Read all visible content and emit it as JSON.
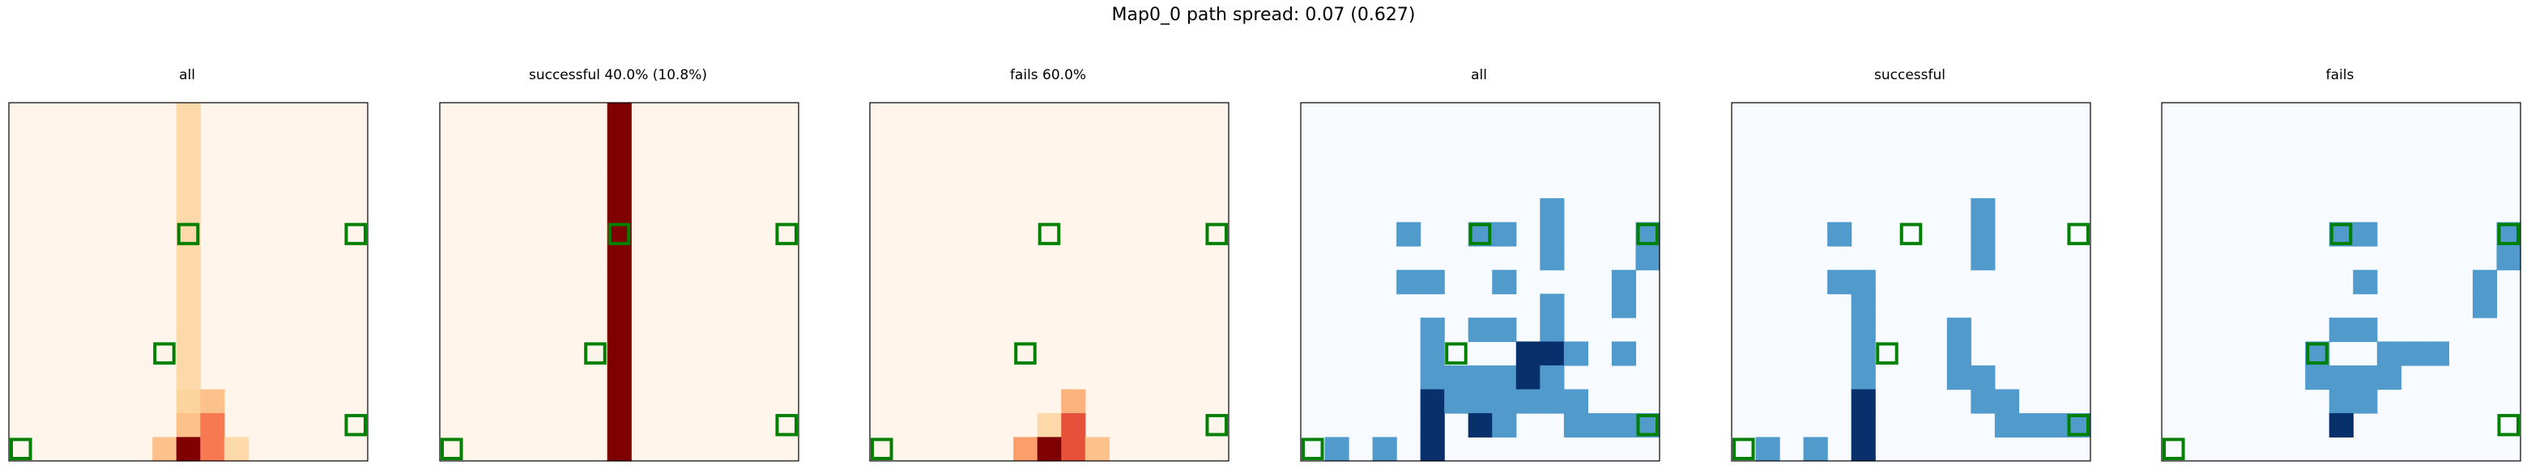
{
  "suptitle": "Map0_0 path spread: 0.07 (0.627)",
  "chart_data": [
    {
      "type": "heatmap",
      "title": "all",
      "colormap": "Oranges",
      "grid": false,
      "rows": 15,
      "cols": 15,
      "cells": [
        {
          "r": 0,
          "c": 7,
          "v": 1
        },
        {
          "r": 1,
          "c": 7,
          "v": 1
        },
        {
          "r": 2,
          "c": 7,
          "v": 1
        },
        {
          "r": 3,
          "c": 7,
          "v": 1
        },
        {
          "r": 4,
          "c": 7,
          "v": 1
        },
        {
          "r": 5,
          "c": 7,
          "v": 1
        },
        {
          "r": 6,
          "c": 7,
          "v": 1
        },
        {
          "r": 7,
          "c": 7,
          "v": 1
        },
        {
          "r": 8,
          "c": 7,
          "v": 1
        },
        {
          "r": 9,
          "c": 7,
          "v": 1
        },
        {
          "r": 10,
          "c": 7,
          "v": 1
        },
        {
          "r": 11,
          "c": 7,
          "v": 1
        },
        {
          "r": 12,
          "c": 7,
          "v": 1.2
        },
        {
          "r": 12,
          "c": 8,
          "v": 2
        },
        {
          "r": 13,
          "c": 7,
          "v": 2
        },
        {
          "r": 13,
          "c": 8,
          "v": 4
        },
        {
          "r": 14,
          "c": 6,
          "v": 2
        },
        {
          "r": 14,
          "c": 7,
          "v": 8
        },
        {
          "r": 14,
          "c": 8,
          "v": 4
        },
        {
          "r": 14,
          "c": 9,
          "v": 1
        }
      ],
      "markers": [
        {
          "r": 5,
          "c": 7
        },
        {
          "r": 5,
          "c": 14
        },
        {
          "r": 10,
          "c": 6
        },
        {
          "r": 13,
          "c": 14
        },
        {
          "r": 14,
          "c": 0
        }
      ]
    },
    {
      "type": "heatmap",
      "title": "successful 40.0% (10.8%)",
      "colormap": "Oranges",
      "grid": false,
      "rows": 15,
      "cols": 15,
      "cells": [
        {
          "r": 0,
          "c": 7,
          "v": 1
        },
        {
          "r": 1,
          "c": 7,
          "v": 1
        },
        {
          "r": 2,
          "c": 7,
          "v": 1
        },
        {
          "r": 3,
          "c": 7,
          "v": 1
        },
        {
          "r": 4,
          "c": 7,
          "v": 1
        },
        {
          "r": 5,
          "c": 7,
          "v": 1
        },
        {
          "r": 6,
          "c": 7,
          "v": 1
        },
        {
          "r": 7,
          "c": 7,
          "v": 1
        },
        {
          "r": 8,
          "c": 7,
          "v": 1
        },
        {
          "r": 9,
          "c": 7,
          "v": 1
        },
        {
          "r": 10,
          "c": 7,
          "v": 1
        },
        {
          "r": 11,
          "c": 7,
          "v": 1
        },
        {
          "r": 12,
          "c": 7,
          "v": 1
        },
        {
          "r": 13,
          "c": 7,
          "v": 1
        },
        {
          "r": 14,
          "c": 7,
          "v": 1
        }
      ],
      "markers": [
        {
          "r": 5,
          "c": 7
        },
        {
          "r": 5,
          "c": 14
        },
        {
          "r": 10,
          "c": 6
        },
        {
          "r": 13,
          "c": 14
        },
        {
          "r": 14,
          "c": 0
        }
      ]
    },
    {
      "type": "heatmap",
      "title": "fails 60.0%",
      "colormap": "Oranges",
      "grid": false,
      "rows": 15,
      "cols": 15,
      "cells": [
        {
          "r": 12,
          "c": 8,
          "v": 2.5
        },
        {
          "r": 13,
          "c": 7,
          "v": 1
        },
        {
          "r": 13,
          "c": 8,
          "v": 5
        },
        {
          "r": 14,
          "c": 6,
          "v": 3
        },
        {
          "r": 14,
          "c": 7,
          "v": 8
        },
        {
          "r": 14,
          "c": 8,
          "v": 5
        },
        {
          "r": 14,
          "c": 9,
          "v": 2
        }
      ],
      "markers": [
        {
          "r": 5,
          "c": 7
        },
        {
          "r": 5,
          "c": 14
        },
        {
          "r": 10,
          "c": 6
        },
        {
          "r": 13,
          "c": 14
        },
        {
          "r": 14,
          "c": 0
        }
      ]
    },
    {
      "type": "heatmap",
      "title": "all",
      "colormap": "Blues",
      "grid": false,
      "rows": 15,
      "cols": 15,
      "cells": [
        {
          "r": 4,
          "c": 10,
          "v": 1
        },
        {
          "r": 5,
          "c": 4,
          "v": 1
        },
        {
          "r": 5,
          "c": 7,
          "v": 1
        },
        {
          "r": 5,
          "c": 8,
          "v": 1
        },
        {
          "r": 5,
          "c": 10,
          "v": 1
        },
        {
          "r": 5,
          "c": 14,
          "v": 1
        },
        {
          "r": 6,
          "c": 10,
          "v": 1
        },
        {
          "r": 6,
          "c": 14,
          "v": 1
        },
        {
          "r": 7,
          "c": 4,
          "v": 1
        },
        {
          "r": 7,
          "c": 5,
          "v": 1
        },
        {
          "r": 7,
          "c": 8,
          "v": 1
        },
        {
          "r": 7,
          "c": 13,
          "v": 1
        },
        {
          "r": 8,
          "c": 10,
          "v": 1
        },
        {
          "r": 8,
          "c": 13,
          "v": 1
        },
        {
          "r": 9,
          "c": 5,
          "v": 1
        },
        {
          "r": 9,
          "c": 7,
          "v": 1
        },
        {
          "r": 9,
          "c": 8,
          "v": 1
        },
        {
          "r": 9,
          "c": 10,
          "v": 1
        },
        {
          "r": 10,
          "c": 5,
          "v": 1
        },
        {
          "r": 10,
          "c": 9,
          "v": 3
        },
        {
          "r": 10,
          "c": 10,
          "v": 3
        },
        {
          "r": 10,
          "c": 11,
          "v": 1
        },
        {
          "r": 10,
          "c": 13,
          "v": 1
        },
        {
          "r": 11,
          "c": 5,
          "v": 1
        },
        {
          "r": 11,
          "c": 6,
          "v": 1
        },
        {
          "r": 11,
          "c": 7,
          "v": 1
        },
        {
          "r": 11,
          "c": 8,
          "v": 1
        },
        {
          "r": 11,
          "c": 9,
          "v": 3
        },
        {
          "r": 11,
          "c": 10,
          "v": 1
        },
        {
          "r": 12,
          "c": 5,
          "v": 3
        },
        {
          "r": 12,
          "c": 6,
          "v": 1
        },
        {
          "r": 12,
          "c": 7,
          "v": 1
        },
        {
          "r": 12,
          "c": 8,
          "v": 1
        },
        {
          "r": 12,
          "c": 9,
          "v": 1
        },
        {
          "r": 12,
          "c": 10,
          "v": 1
        },
        {
          "r": 12,
          "c": 11,
          "v": 1
        },
        {
          "r": 13,
          "c": 5,
          "v": 3
        },
        {
          "r": 13,
          "c": 7,
          "v": 3
        },
        {
          "r": 13,
          "c": 8,
          "v": 1
        },
        {
          "r": 13,
          "c": 11,
          "v": 1
        },
        {
          "r": 13,
          "c": 12,
          "v": 1
        },
        {
          "r": 13,
          "c": 13,
          "v": 1
        },
        {
          "r": 13,
          "c": 14,
          "v": 1
        },
        {
          "r": 14,
          "c": 1,
          "v": 1
        },
        {
          "r": 14,
          "c": 3,
          "v": 1
        },
        {
          "r": 14,
          "c": 5,
          "v": 3
        }
      ],
      "markers": [
        {
          "r": 5,
          "c": 7
        },
        {
          "r": 5,
          "c": 14
        },
        {
          "r": 10,
          "c": 6
        },
        {
          "r": 13,
          "c": 14
        },
        {
          "r": 14,
          "c": 0
        }
      ]
    },
    {
      "type": "heatmap",
      "title": "successful",
      "colormap": "Blues",
      "grid": false,
      "rows": 15,
      "cols": 15,
      "cells": [
        {
          "r": 4,
          "c": 10,
          "v": 1
        },
        {
          "r": 5,
          "c": 4,
          "v": 1
        },
        {
          "r": 5,
          "c": 10,
          "v": 1
        },
        {
          "r": 6,
          "c": 10,
          "v": 1
        },
        {
          "r": 7,
          "c": 4,
          "v": 1
        },
        {
          "r": 7,
          "c": 5,
          "v": 1
        },
        {
          "r": 8,
          "c": 5,
          "v": 1
        },
        {
          "r": 9,
          "c": 5,
          "v": 1
        },
        {
          "r": 9,
          "c": 9,
          "v": 1
        },
        {
          "r": 10,
          "c": 5,
          "v": 1
        },
        {
          "r": 10,
          "c": 9,
          "v": 1
        },
        {
          "r": 11,
          "c": 5,
          "v": 1
        },
        {
          "r": 11,
          "c": 9,
          "v": 1
        },
        {
          "r": 11,
          "c": 10,
          "v": 1
        },
        {
          "r": 12,
          "c": 5,
          "v": 3
        },
        {
          "r": 12,
          "c": 10,
          "v": 1
        },
        {
          "r": 12,
          "c": 11,
          "v": 1
        },
        {
          "r": 13,
          "c": 5,
          "v": 3
        },
        {
          "r": 13,
          "c": 11,
          "v": 1
        },
        {
          "r": 13,
          "c": 12,
          "v": 1
        },
        {
          "r": 13,
          "c": 13,
          "v": 1
        },
        {
          "r": 13,
          "c": 14,
          "v": 1
        },
        {
          "r": 14,
          "c": 1,
          "v": 1
        },
        {
          "r": 14,
          "c": 3,
          "v": 1
        },
        {
          "r": 14,
          "c": 5,
          "v": 3
        }
      ],
      "markers": [
        {
          "r": 5,
          "c": 7
        },
        {
          "r": 5,
          "c": 14
        },
        {
          "r": 10,
          "c": 6
        },
        {
          "r": 13,
          "c": 14
        },
        {
          "r": 14,
          "c": 0
        }
      ]
    },
    {
      "type": "heatmap",
      "title": "fails",
      "colormap": "Blues",
      "grid": false,
      "rows": 15,
      "cols": 15,
      "cells": [
        {
          "r": 5,
          "c": 7,
          "v": 1
        },
        {
          "r": 5,
          "c": 8,
          "v": 1
        },
        {
          "r": 5,
          "c": 14,
          "v": 1
        },
        {
          "r": 6,
          "c": 14,
          "v": 1
        },
        {
          "r": 7,
          "c": 8,
          "v": 1
        },
        {
          "r": 7,
          "c": 13,
          "v": 1
        },
        {
          "r": 8,
          "c": 13,
          "v": 1
        },
        {
          "r": 9,
          "c": 7,
          "v": 1
        },
        {
          "r": 9,
          "c": 8,
          "v": 1
        },
        {
          "r": 10,
          "c": 6,
          "v": 1
        },
        {
          "r": 10,
          "c": 9,
          "v": 1
        },
        {
          "r": 10,
          "c": 10,
          "v": 1
        },
        {
          "r": 10,
          "c": 11,
          "v": 1
        },
        {
          "r": 11,
          "c": 6,
          "v": 1
        },
        {
          "r": 11,
          "c": 7,
          "v": 1
        },
        {
          "r": 11,
          "c": 8,
          "v": 1
        },
        {
          "r": 11,
          "c": 9,
          "v": 1
        },
        {
          "r": 12,
          "c": 7,
          "v": 1
        },
        {
          "r": 12,
          "c": 8,
          "v": 1
        },
        {
          "r": 13,
          "c": 7,
          "v": 3
        }
      ],
      "markers": [
        {
          "r": 5,
          "c": 7
        },
        {
          "r": 5,
          "c": 14
        },
        {
          "r": 10,
          "c": 6
        },
        {
          "r": 13,
          "c": 14
        },
        {
          "r": 14,
          "c": 0
        }
      ]
    }
  ],
  "colors": {
    "oranges_background": "#fff5eb",
    "oranges_dark": "#7f0000",
    "blues_background": "#f7fbff",
    "blues_dark": "#08306b",
    "marker": "#008000",
    "axis_frame": "#000000"
  }
}
